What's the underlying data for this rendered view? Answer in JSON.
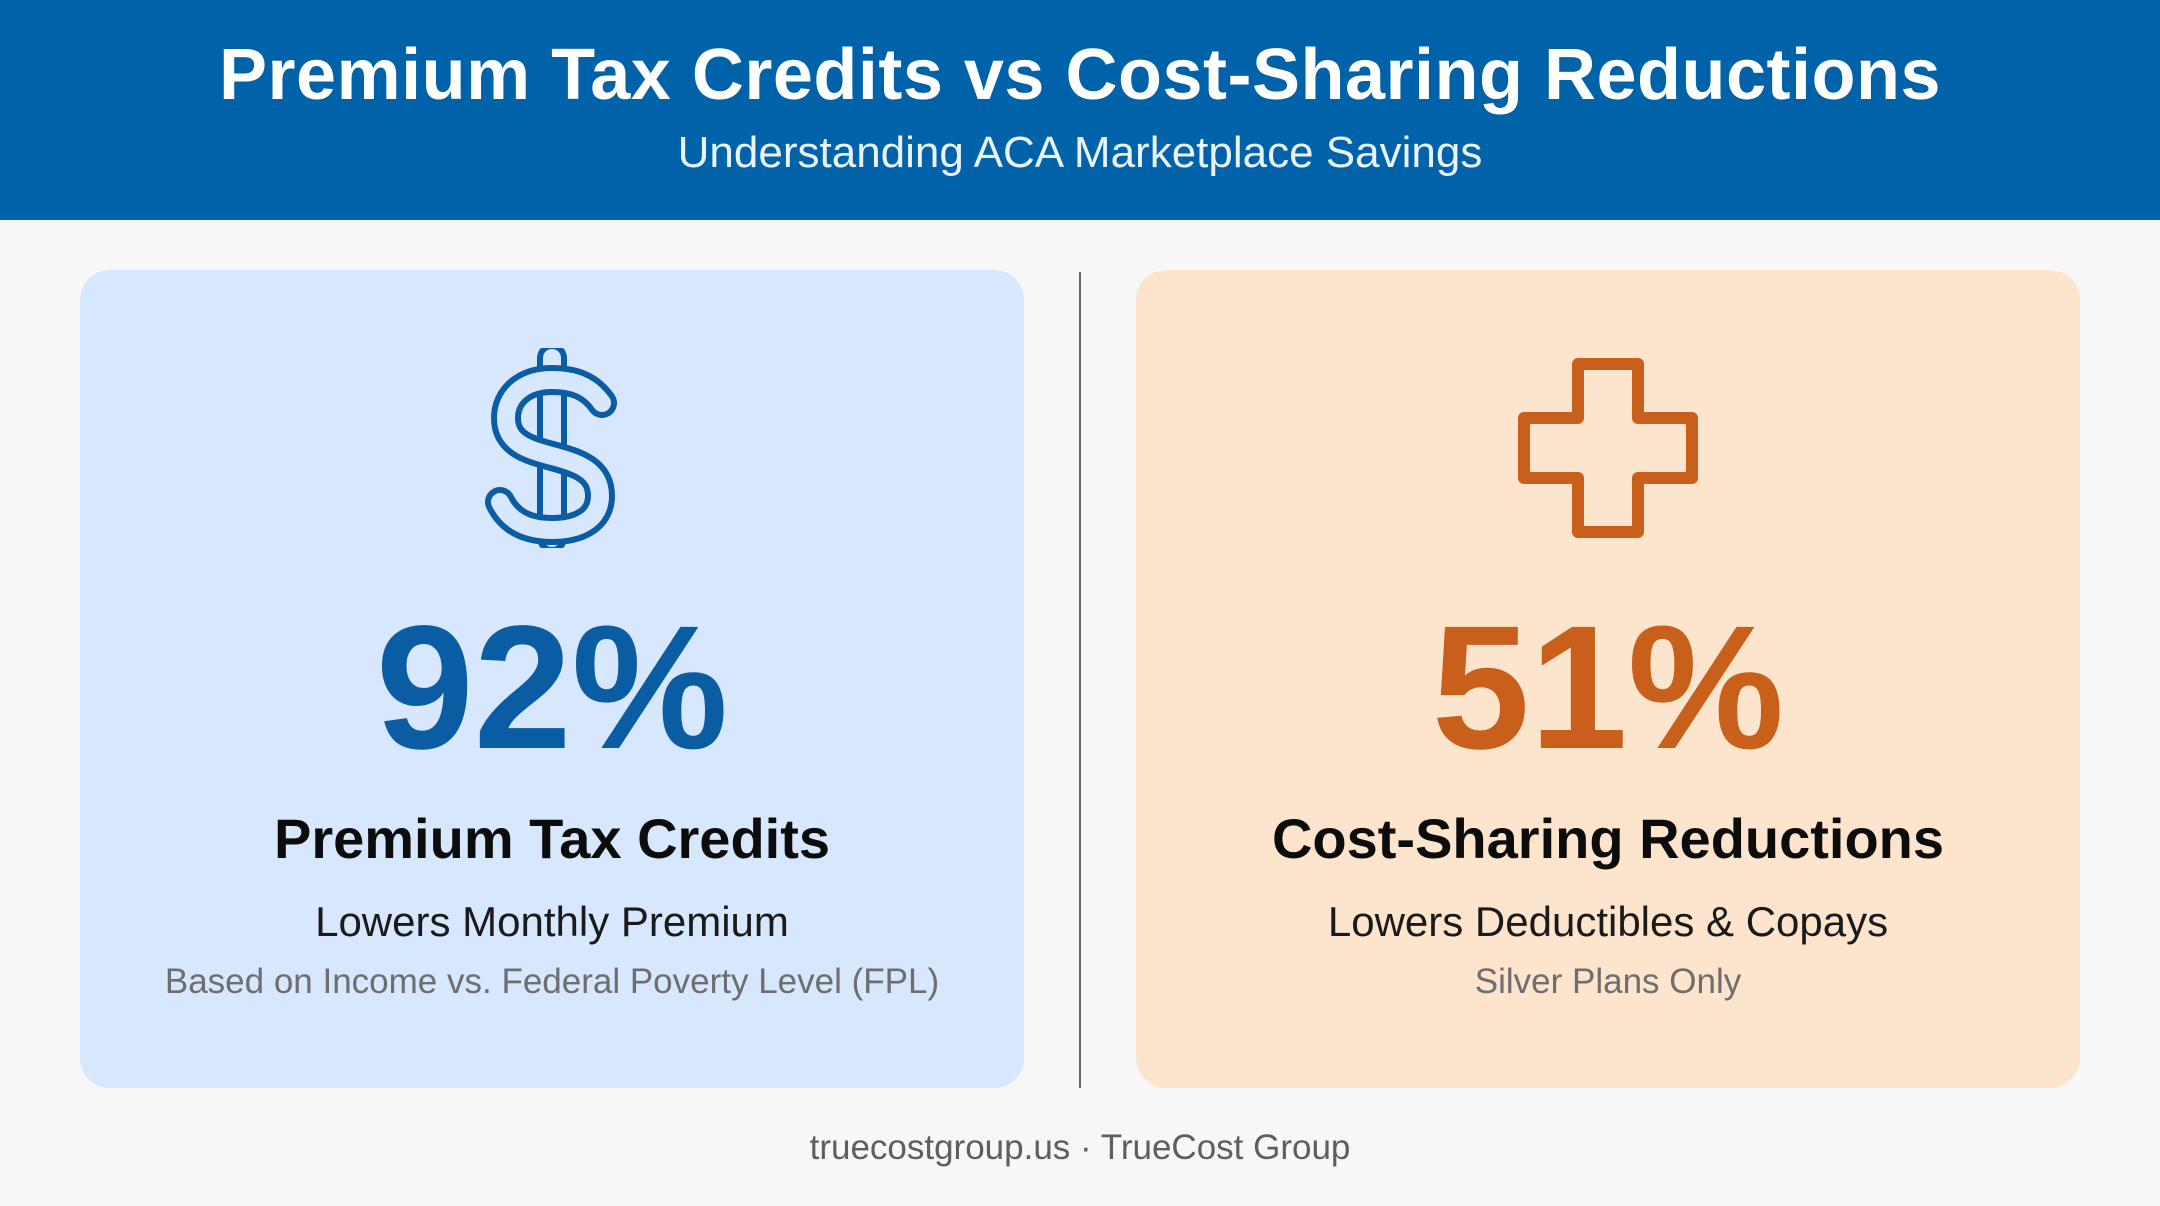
{
  "header": {
    "title": "Premium Tax Credits vs Cost-Sharing Reductions",
    "subtitle": "Understanding ACA Marketplace Savings"
  },
  "cards": [
    {
      "icon": "dollar-sign-icon",
      "stat": "92%",
      "name": "Premium Tax Credits",
      "description": "Lowers Monthly Premium",
      "note": "Based on Income vs. Federal Poverty Level (FPL)",
      "accent_color": "#0a5ca3",
      "background_color": "#d7e7fd"
    },
    {
      "icon": "medical-cross-icon",
      "stat": "51%",
      "name": "Cost-Sharing Reductions",
      "description": "Lowers Deductibles & Copays",
      "note": "Silver Plans Only",
      "accent_color": "#c8601c",
      "background_color": "#fde5cd"
    }
  ],
  "footer": {
    "text": "truecostgroup.us · TrueCost Group"
  },
  "colors": {
    "header_background": "#0062a8",
    "page_background": "#f7f7f8"
  }
}
